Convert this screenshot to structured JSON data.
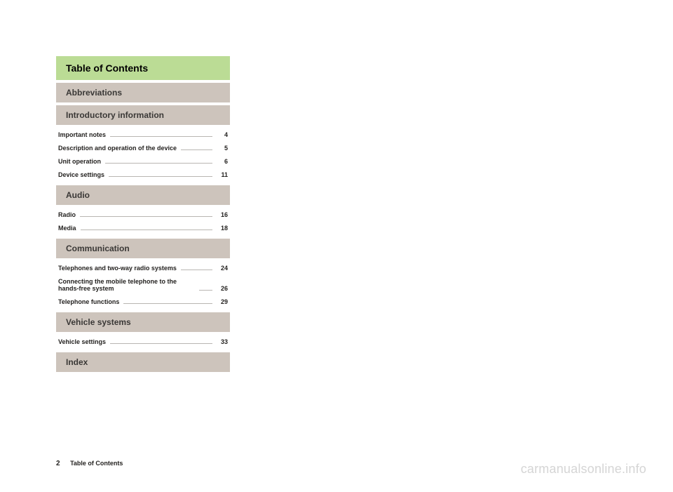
{
  "colors": {
    "title_bg": "#bbdc95",
    "section_bg": "#cdc4bc",
    "leader": "#b9b6b2",
    "text": "#242220",
    "section_text": "#3a3836",
    "background": "#ffffff",
    "watermark": "#d5d5d5"
  },
  "title": "Table of Contents",
  "sections": [
    {
      "heading": "Abbreviations",
      "entries": []
    },
    {
      "heading": "Introductory information",
      "entries": [
        {
          "label": "Important notes",
          "page": "4"
        },
        {
          "label": "Description and operation of the device",
          "page": "5"
        },
        {
          "label": "Unit operation",
          "page": "6"
        },
        {
          "label": "Device settings",
          "page": "11"
        }
      ]
    },
    {
      "heading": "Audio",
      "entries": [
        {
          "label": "Radio",
          "page": "16"
        },
        {
          "label": "Media",
          "page": "18"
        }
      ]
    },
    {
      "heading": "Communication",
      "entries": [
        {
          "label": "Telephones and two-way radio systems",
          "page": "24"
        },
        {
          "label": "Connecting the mobile telephone to the hands-free system",
          "page": "26"
        },
        {
          "label": "Telephone functions",
          "page": "29"
        }
      ]
    },
    {
      "heading": "Vehicle systems",
      "entries": [
        {
          "label": "Vehicle settings",
          "page": "33"
        }
      ]
    },
    {
      "heading": "Index",
      "entries": []
    }
  ],
  "footer": {
    "page_number": "2",
    "label": "Table of Contents"
  },
  "watermark": "carmanualsonline.info"
}
